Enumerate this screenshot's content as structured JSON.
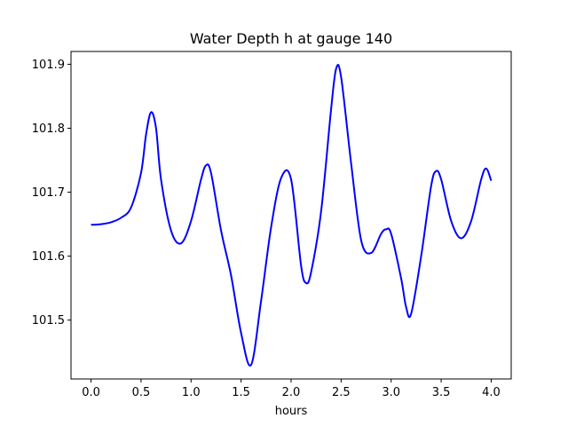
{
  "chart_data": {
    "type": "line",
    "title": "Water Depth h at gauge 140",
    "xlabel": "hours",
    "ylabel": "",
    "xlim": [
      -0.2,
      4.2
    ],
    "ylim": [
      101.408,
      101.92
    ],
    "xticks": [
      "0.0",
      "0.5",
      "1.0",
      "1.5",
      "2.0",
      "2.5",
      "3.0",
      "3.5",
      "4.0"
    ],
    "yticks": [
      "101.5",
      "101.6",
      "101.7",
      "101.8",
      "101.9"
    ],
    "grid": false,
    "legend": "none",
    "series": [
      {
        "color": "#0000ff",
        "x": [
          0.0,
          0.1,
          0.2,
          0.3,
          0.4,
          0.5,
          0.55,
          0.6,
          0.65,
          0.7,
          0.8,
          0.9,
          1.0,
          1.1,
          1.15,
          1.2,
          1.3,
          1.4,
          1.5,
          1.6,
          1.7,
          1.8,
          1.9,
          2.0,
          2.1,
          2.15,
          2.2,
          2.3,
          2.4,
          2.45,
          2.5,
          2.6,
          2.7,
          2.8,
          2.9,
          2.95,
          3.0,
          3.1,
          3.15,
          3.2,
          3.3,
          3.4,
          3.45,
          3.5,
          3.6,
          3.7,
          3.8,
          3.9,
          3.95,
          4.0
        ],
        "y": [
          101.649,
          101.65,
          101.653,
          101.66,
          101.676,
          101.73,
          101.79,
          101.825,
          101.8,
          101.72,
          101.64,
          101.62,
          101.655,
          101.72,
          101.742,
          101.73,
          101.64,
          101.57,
          101.48,
          101.43,
          101.53,
          101.645,
          101.722,
          101.72,
          101.585,
          101.558,
          101.575,
          101.67,
          101.83,
          101.893,
          101.88,
          101.745,
          101.625,
          101.605,
          101.635,
          101.642,
          101.635,
          101.565,
          101.52,
          101.51,
          101.6,
          101.71,
          101.733,
          101.72,
          101.655,
          101.628,
          101.655,
          101.72,
          101.737,
          101.718
        ]
      }
    ]
  }
}
